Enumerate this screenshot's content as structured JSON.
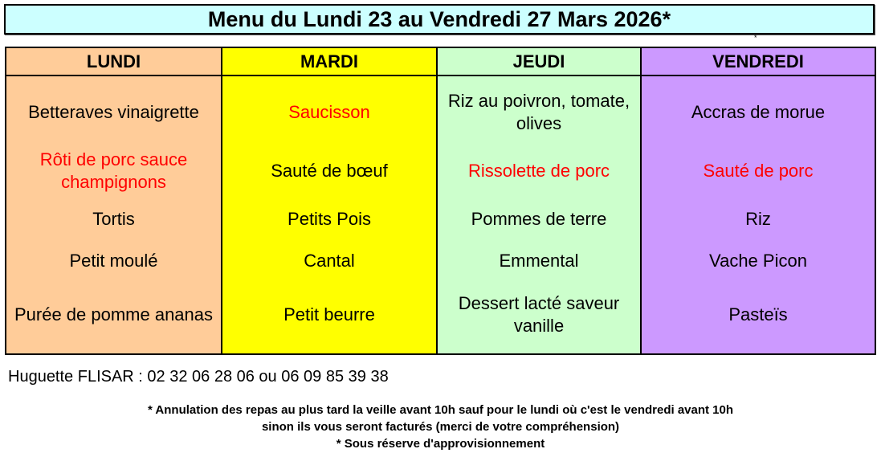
{
  "title": "Menu du Lundi 23 au Vendredi 27 Mars 2026*",
  "asterisk": "*",
  "colors": {
    "title_bg": "#ccffff",
    "lundi": "#ffcc99",
    "mardi": "#ffff00",
    "jeudi": "#ccffcc",
    "vendredi": "#cc99ff",
    "highlight_text": "#ff0000"
  },
  "days": [
    {
      "name": "LUNDI",
      "items": [
        {
          "text": "Betteraves vinaigrette",
          "red": false
        },
        {
          "text": "Rôti de porc sauce champignons",
          "red": true
        },
        {
          "text": "Tortis",
          "red": false
        },
        {
          "text": "Petit moulé",
          "red": false
        },
        {
          "text": "Purée de pomme ananas",
          "red": false
        }
      ]
    },
    {
      "name": "MARDI",
      "items": [
        {
          "text": "Saucisson",
          "red": true
        },
        {
          "text": "Sauté de bœuf",
          "red": false
        },
        {
          "text": "Petits Pois",
          "red": false
        },
        {
          "text": "Cantal",
          "red": false
        },
        {
          "text": "Petit beurre",
          "red": false
        }
      ]
    },
    {
      "name": "JEUDI",
      "items": [
        {
          "text": "Riz au poivron, tomate, olives",
          "red": false
        },
        {
          "text": "Rissolette de porc",
          "red": true
        },
        {
          "text": "Pommes de terre",
          "red": false
        },
        {
          "text": "Emmental",
          "red": false
        },
        {
          "text": "Dessert lacté saveur vanille",
          "red": false
        }
      ]
    },
    {
      "name": "VENDREDI",
      "items": [
        {
          "text": "Accras de morue",
          "red": false
        },
        {
          "text": "Sauté de porc",
          "red": true
        },
        {
          "text": "Riz",
          "red": false
        },
        {
          "text": "Vache Picon",
          "red": false
        },
        {
          "text": "Pasteïs",
          "red": false
        }
      ]
    }
  ],
  "contact": "Huguette FLISAR : 02 32 06 28 06 ou 06 09 85 39 38",
  "notes": [
    "* Annulation des repas au plus tard la veille avant 10h sauf pour le lundi où c'est le vendredi avant 10h",
    "sinon ils vous seront facturés (merci de votre compréhension)",
    "* Sous réserve d'approvisionnement"
  ]
}
